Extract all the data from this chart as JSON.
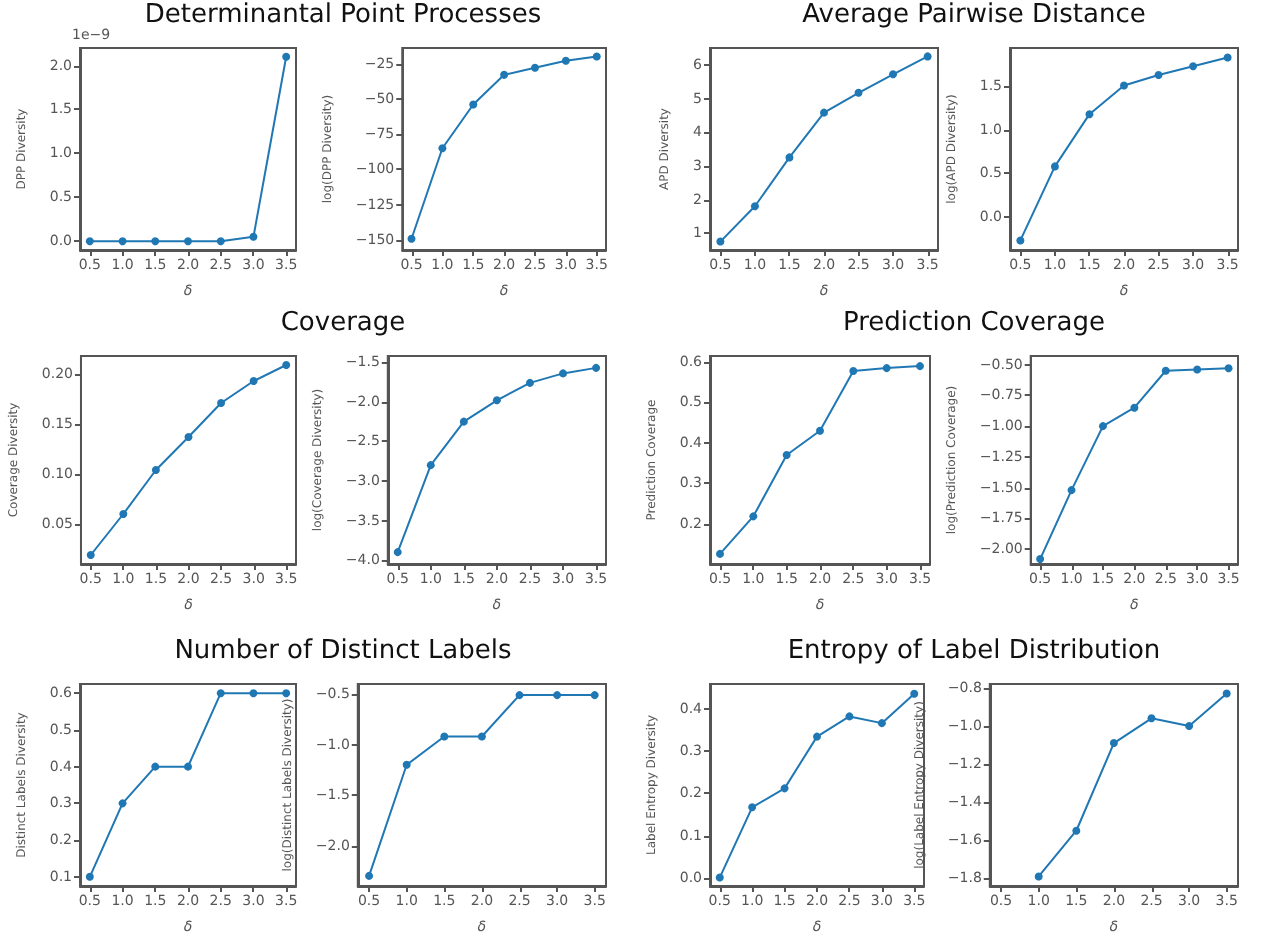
{
  "chart_data": [
    {
      "type": "line",
      "title": "Determinantal Point Processes",
      "xlabel": "δ",
      "ylabel": "DPP Diversity",
      "annotations": [
        "1e−9"
      ],
      "x": [
        0.5,
        1,
        1.5,
        2,
        2.5,
        3,
        3.5
      ],
      "series": [
        {
          "color": "#1f77b4",
          "values": [
            0,
            0,
            0,
            0,
            0,
            0.05,
            2.1
          ]
        }
      ],
      "xlim": [
        0.35,
        3.65
      ],
      "xticks": [
        0.5,
        {
          "value": 1,
          "label": "1.0"
        },
        1.5,
        {
          "value": 2,
          "label": "2.0"
        },
        2.5,
        {
          "value": 3,
          "label": "3.0"
        },
        3.5
      ],
      "ylim": [
        -0.1,
        2.2
      ],
      "yticks": [
        {
          "value": 0,
          "label": "0.0"
        },
        0.5,
        {
          "value": 1,
          "label": "1.0"
        },
        1.5,
        {
          "value": 2,
          "label": "2.0"
        }
      ],
      "marker": "circle",
      "grid": false
    },
    {
      "type": "line",
      "xlabel": "δ",
      "ylabel": "log(DPP Diversity)",
      "x": [
        0.5,
        1,
        1.5,
        2,
        2.5,
        3,
        3.5
      ],
      "series": [
        {
          "color": "#1f77b4",
          "values": [
            -149,
            -85,
            -54,
            -33,
            -28,
            -23,
            -20
          ]
        }
      ],
      "xlim": [
        0.35,
        3.65
      ],
      "xticks": [
        0.5,
        {
          "value": 1,
          "label": "1.0"
        },
        1.5,
        {
          "value": 2,
          "label": "2.0"
        },
        2.5,
        {
          "value": 3,
          "label": "3.0"
        },
        3.5
      ],
      "ylim": [
        -157,
        -14
      ],
      "yticks": [
        {
          "value": -150,
          "label": "−150"
        },
        {
          "value": -125,
          "label": "−125"
        },
        {
          "value": -100,
          "label": "−100"
        },
        {
          "value": -75,
          "label": "−75"
        },
        {
          "value": -50,
          "label": "−50"
        },
        {
          "value": -25,
          "label": "−25"
        }
      ],
      "marker": "circle",
      "grid": false
    },
    {
      "type": "line",
      "title": "Average Pairwise Distance",
      "xlabel": "δ",
      "ylabel": "APD Diversity",
      "x": [
        0.5,
        1,
        1.5,
        2,
        2.5,
        3,
        3.5
      ],
      "series": [
        {
          "color": "#1f77b4",
          "values": [
            0.75,
            1.8,
            3.25,
            4.58,
            5.17,
            5.72,
            6.25
          ]
        }
      ],
      "xlim": [
        0.35,
        3.65
      ],
      "xticks": [
        0.5,
        {
          "value": 1,
          "label": "1.0"
        },
        1.5,
        {
          "value": 2,
          "label": "2.0"
        },
        2.5,
        {
          "value": 3,
          "label": "3.0"
        },
        3.5
      ],
      "ylim": [
        0.5,
        6.5
      ],
      "yticks": [
        1,
        2,
        3,
        4,
        5,
        6
      ],
      "marker": "circle",
      "grid": false
    },
    {
      "type": "line",
      "xlabel": "δ",
      "ylabel": "log(APD Diversity)",
      "x": [
        0.5,
        1,
        1.5,
        2,
        2.5,
        3,
        3.5
      ],
      "series": [
        {
          "color": "#1f77b4",
          "values": [
            -0.27,
            0.58,
            1.18,
            1.51,
            1.63,
            1.73,
            1.83
          ]
        }
      ],
      "xlim": [
        0.35,
        3.65
      ],
      "xticks": [
        0.5,
        {
          "value": 1,
          "label": "1.0"
        },
        1.5,
        {
          "value": 2,
          "label": "2.0"
        },
        2.5,
        {
          "value": 3,
          "label": "3.0"
        },
        3.5
      ],
      "ylim": [
        -0.38,
        1.94
      ],
      "yticks": [
        {
          "value": 0,
          "label": "0.0"
        },
        0.5,
        {
          "value": 1,
          "label": "1.0"
        },
        1.5
      ],
      "marker": "circle",
      "grid": false
    },
    {
      "type": "line",
      "title": "Coverage",
      "xlabel": "δ",
      "ylabel": "Coverage Diversity",
      "x": [
        0.5,
        1,
        1.5,
        2,
        2.5,
        3,
        3.5
      ],
      "series": [
        {
          "color": "#1f77b4",
          "values": [
            0.019,
            0.06,
            0.104,
            0.137,
            0.171,
            0.193,
            0.209
          ]
        }
      ],
      "xlim": [
        0.35,
        3.65
      ],
      "xticks": [
        0.5,
        {
          "value": 1,
          "label": "1.0"
        },
        1.5,
        {
          "value": 2,
          "label": "2.0"
        },
        2.5,
        {
          "value": 3,
          "label": "3.0"
        },
        3.5
      ],
      "ylim": [
        0.01,
        0.218
      ],
      "yticks": [
        0.05,
        {
          "value": 0.1,
          "label": "0.10"
        },
        0.15,
        {
          "value": 0.2,
          "label": "0.20"
        }
      ],
      "marker": "circle",
      "grid": false
    },
    {
      "type": "line",
      "xlabel": "δ",
      "ylabel": "log(Coverage Diversity)",
      "x": [
        0.5,
        1,
        1.5,
        2,
        2.5,
        3,
        3.5
      ],
      "series": [
        {
          "color": "#1f77b4",
          "values": [
            -3.9,
            -2.8,
            -2.25,
            -1.98,
            -1.76,
            -1.64,
            -1.57
          ]
        }
      ],
      "xlim": [
        0.35,
        3.65
      ],
      "xticks": [
        0.5,
        {
          "value": 1,
          "label": "1.0"
        },
        1.5,
        {
          "value": 2,
          "label": "2.0"
        },
        2.5,
        {
          "value": 3,
          "label": "3.0"
        },
        3.5
      ],
      "ylim": [
        -4.05,
        -1.42
      ],
      "yticks": [
        {
          "value": -4,
          "label": "−4.0"
        },
        {
          "value": -3.5,
          "label": "−3.5"
        },
        {
          "value": -3,
          "label": "−3.0"
        },
        {
          "value": -2.5,
          "label": "−2.5"
        },
        {
          "value": -2,
          "label": "−2.0"
        },
        {
          "value": -1.5,
          "label": "−1.5"
        }
      ],
      "marker": "circle",
      "grid": false
    },
    {
      "type": "line",
      "title": "Prediction Coverage",
      "xlabel": "δ",
      "ylabel": "Prediction Coverage",
      "x": [
        0.5,
        1,
        1.5,
        2,
        2.5,
        3,
        3.5
      ],
      "series": [
        {
          "color": "#1f77b4",
          "values": [
            0.125,
            0.218,
            0.37,
            0.43,
            0.578,
            0.585,
            0.59
          ]
        }
      ],
      "xlim": [
        0.35,
        3.65
      ],
      "xticks": [
        0.5,
        {
          "value": 1,
          "label": "1.0"
        },
        1.5,
        {
          "value": 2,
          "label": "2.0"
        },
        2.5,
        {
          "value": 3,
          "label": "3.0"
        },
        3.5
      ],
      "ylim": [
        0.1,
        0.615
      ],
      "yticks": [
        0.2,
        0.3,
        0.4,
        0.5,
        0.6
      ],
      "marker": "circle",
      "grid": false
    },
    {
      "type": "line",
      "xlabel": "δ",
      "ylabel": "log(Prediction Coverage)",
      "x": [
        0.5,
        1,
        1.5,
        2,
        2.5,
        3,
        3.5
      ],
      "series": [
        {
          "color": "#1f77b4",
          "values": [
            -2.08,
            -1.52,
            -1.0,
            -0.85,
            -0.55,
            -0.54,
            -0.53
          ]
        }
      ],
      "xlim": [
        0.35,
        3.65
      ],
      "xticks": [
        0.5,
        {
          "value": 1,
          "label": "1.0"
        },
        1.5,
        {
          "value": 2,
          "label": "2.0"
        },
        2.5,
        {
          "value": 3,
          "label": "3.0"
        },
        3.5
      ],
      "ylim": [
        -2.12,
        -0.43
      ],
      "yticks": [
        {
          "value": -2,
          "label": "−2.00"
        },
        {
          "value": -1.75,
          "label": "−1.75"
        },
        {
          "value": -1.5,
          "label": "−1.50"
        },
        {
          "value": -1.25,
          "label": "−1.25"
        },
        {
          "value": -1,
          "label": "−1.00"
        },
        {
          "value": -0.75,
          "label": "−0.75"
        },
        {
          "value": -0.5,
          "label": "−0.50"
        }
      ],
      "marker": "circle",
      "grid": false
    },
    {
      "type": "line",
      "title": "Number of Distinct Labels",
      "xlabel": "δ",
      "ylabel": "Distinct Labels Diversity",
      "x": [
        0.5,
        1,
        1.5,
        2,
        2.5,
        3,
        3.5
      ],
      "series": [
        {
          "color": "#1f77b4",
          "values": [
            0.1,
            0.3,
            0.4,
            0.4,
            0.6,
            0.6,
            0.6
          ]
        }
      ],
      "xlim": [
        0.35,
        3.65
      ],
      "xticks": [
        0.5,
        {
          "value": 1,
          "label": "1.0"
        },
        1.5,
        {
          "value": 2,
          "label": "2.0"
        },
        2.5,
        {
          "value": 3,
          "label": "3.0"
        },
        3.5
      ],
      "ylim": [
        0.075,
        0.625
      ],
      "yticks": [
        0.1,
        0.2,
        0.3,
        0.4,
        0.5,
        0.6
      ],
      "marker": "circle",
      "grid": false
    },
    {
      "type": "line",
      "xlabel": "δ",
      "ylabel": "log(Distinct Labels Diversity)",
      "x": [
        0.5,
        1,
        1.5,
        2,
        2.5,
        3,
        3.5
      ],
      "series": [
        {
          "color": "#1f77b4",
          "values": [
            -2.3,
            -1.2,
            -0.92,
            -0.92,
            -0.51,
            -0.51,
            -0.51
          ]
        }
      ],
      "xlim": [
        0.35,
        3.65
      ],
      "xticks": [
        0.5,
        {
          "value": 1,
          "label": "1.0"
        },
        1.5,
        {
          "value": 2,
          "label": "2.0"
        },
        2.5,
        {
          "value": 3,
          "label": "3.0"
        },
        3.5
      ],
      "ylim": [
        -2.4,
        -0.4
      ],
      "yticks": [
        {
          "value": -2,
          "label": "−2.0"
        },
        {
          "value": -1.5,
          "label": "−1.5"
        },
        {
          "value": -1,
          "label": "−1.0"
        },
        {
          "value": -0.5,
          "label": "−0.5"
        }
      ],
      "marker": "circle",
      "grid": false
    },
    {
      "type": "line",
      "title": "Entropy of Label Distribution",
      "xlabel": "δ",
      "ylabel": "Label Entropy Diversity",
      "x": [
        0.5,
        1,
        1.5,
        2,
        2.5,
        3,
        3.5
      ],
      "series": [
        {
          "color": "#1f77b4",
          "values": [
            0,
            0.167,
            0.212,
            0.335,
            0.383,
            0.367,
            0.437
          ]
        }
      ],
      "xlim": [
        0.35,
        3.65
      ],
      "xticks": [
        0.5,
        {
          "value": 1,
          "label": "1.0"
        },
        1.5,
        {
          "value": 2,
          "label": "2.0"
        },
        2.5,
        {
          "value": 3,
          "label": "3.0"
        },
        3.5
      ],
      "ylim": [
        -0.02,
        0.46
      ],
      "yticks": [
        {
          "value": 0,
          "label": "0.0"
        },
        0.1,
        0.2,
        0.3,
        0.4
      ],
      "marker": "circle",
      "grid": false
    },
    {
      "type": "line",
      "xlabel": "δ",
      "ylabel": "log(Label Entropy Diversity)",
      "series": [
        {
          "color": "#1f77b4",
          "x": [
            1,
            1.5,
            2,
            2.5,
            3,
            3.5
          ],
          "values": [
            -1.79,
            -1.55,
            -1.09,
            -0.96,
            -1.0,
            -0.83
          ]
        }
      ],
      "xlim": [
        0.35,
        3.65
      ],
      "xticks": [
        0.5,
        {
          "value": 1,
          "label": "1.0"
        },
        1.5,
        {
          "value": 2,
          "label": "2.0"
        },
        2.5,
        {
          "value": 3,
          "label": "3.0"
        },
        3.5
      ],
      "ylim": [
        -1.84,
        -0.78
      ],
      "yticks": [
        {
          "value": -1.8,
          "label": "−1.8"
        },
        {
          "value": -1.6,
          "label": "−1.6"
        },
        {
          "value": -1.4,
          "label": "−1.4"
        },
        {
          "value": -1.2,
          "label": "−1.2"
        },
        {
          "value": -1,
          "label": "−1.0"
        },
        {
          "value": -0.8,
          "label": "−0.8"
        }
      ],
      "marker": "circle",
      "grid": false
    }
  ]
}
